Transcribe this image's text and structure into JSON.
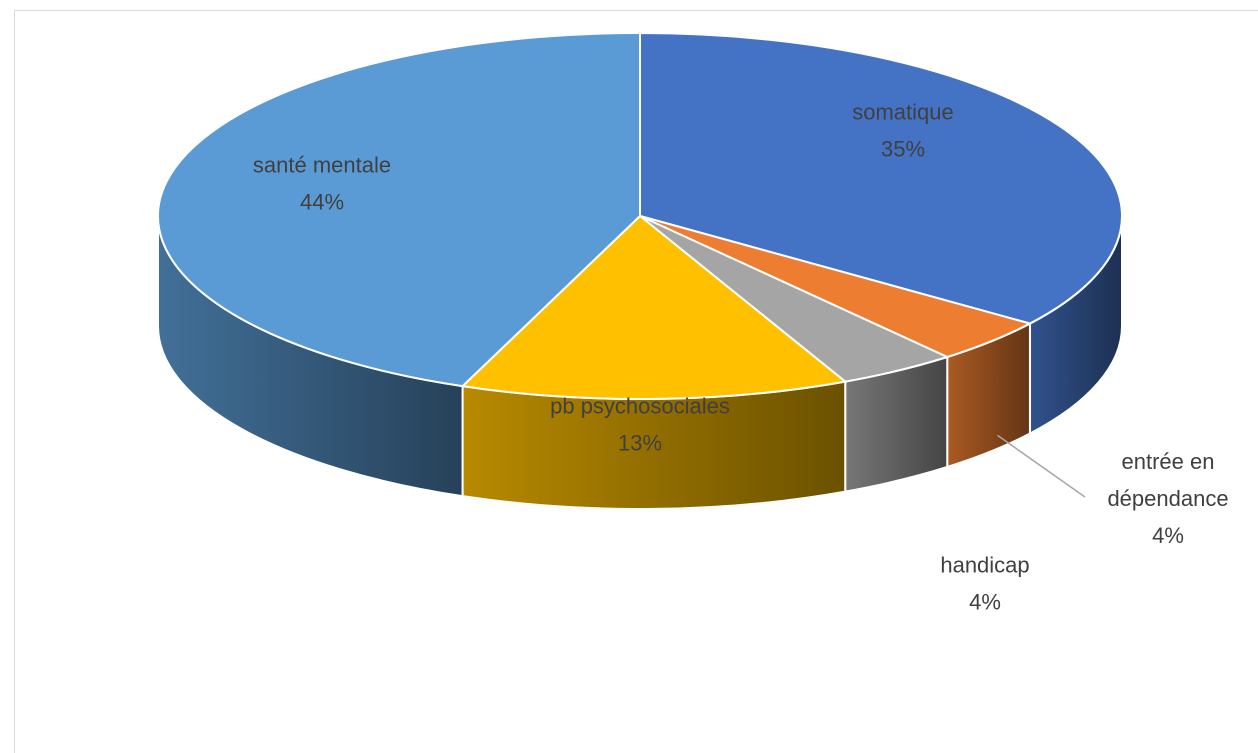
{
  "chart_data": {
    "type": "pie",
    "title": "",
    "three_d": true,
    "start_angle_deg": 0,
    "direction": "clockwise",
    "legend": "none",
    "slices": [
      {
        "name": "somatique",
        "value": 35,
        "label": "35%",
        "color": "#4472c4",
        "label_lines": [
          "somatique"
        ],
        "label_position": "inside"
      },
      {
        "name": "entrée en dépendance",
        "value": 4,
        "label": "4%",
        "color": "#ed7d31",
        "label_lines": [
          "entrée en",
          "dépendance"
        ],
        "label_position": "outside"
      },
      {
        "name": "handicap",
        "value": 4,
        "label": "4%",
        "color": "#a5a5a5",
        "label_lines": [
          "handicap"
        ],
        "label_position": "outside"
      },
      {
        "name": "pb psychosociales",
        "value": 13,
        "label": "13%",
        "color": "#ffc000",
        "label_lines": [
          "pb psychosociales"
        ],
        "label_position": "inside"
      },
      {
        "name": "santé mentale",
        "value": 44,
        "label": "44%",
        "color": "#5b9bd5",
        "label_lines": [
          "santé mentale"
        ],
        "label_position": "inside"
      }
    ]
  }
}
